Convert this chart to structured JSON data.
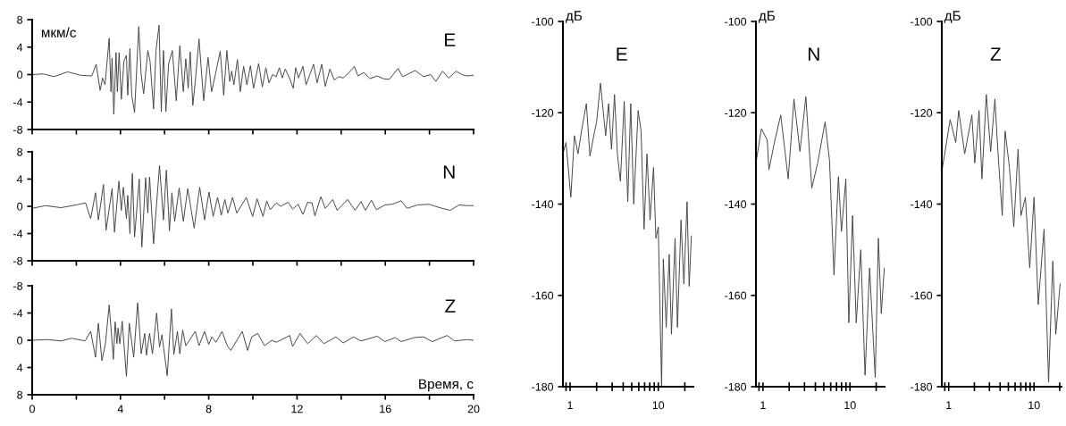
{
  "chart_data": [
    {
      "type": "line",
      "title": "E",
      "ylabel": "мкм/с",
      "xlim": [
        0,
        20
      ],
      "ylim": [
        -8,
        8
      ],
      "xticks": [
        0,
        {
          "value": 2,
          "label": null
        },
        4,
        {
          "value": 6,
          "label": null
        },
        8,
        {
          "value": 10,
          "label": null
        },
        12,
        {
          "value": 14,
          "label": null
        },
        16,
        {
          "value": 18,
          "label": null
        },
        20
      ],
      "yticks": [
        -8,
        -4,
        0,
        4,
        8
      ],
      "tick_labels": "y",
      "grid": false,
      "legend": false,
      "x": [
        0,
        0.5,
        1,
        1.6,
        2.2,
        2.7,
        2.9,
        3.08,
        3.19,
        3.3,
        3.49,
        3.57,
        3.62,
        3.7,
        3.8,
        3.86,
        3.94,
        4.04,
        4.16,
        4.27,
        4.33,
        4.43,
        4.51,
        4.64,
        4.83,
        4.94,
        5.05,
        5.24,
        5.34,
        5.5,
        5.61,
        5.75,
        5.85,
        5.95,
        6.06,
        6.18,
        6.35,
        6.53,
        6.69,
        6.85,
        6.96,
        7.07,
        7.16,
        7.28,
        7.39,
        7.56,
        7.77,
        7.97,
        8.13,
        8.3,
        8.52,
        8.68,
        8.82,
        8.95,
        9.04,
        9.14,
        9.3,
        9.43,
        9.58,
        9.73,
        9.89,
        10.03,
        10.26,
        10.43,
        10.59,
        10.73,
        10.89,
        11.06,
        11.2,
        11.33,
        11.47,
        11.67,
        11.83,
        11.94,
        12.07,
        12.27,
        12.41,
        12.58,
        12.75,
        12.91,
        13.12,
        13.28,
        13.49,
        13.69,
        13.89,
        14.09,
        14.36,
        14.6,
        14.76,
        15.03,
        15.3,
        15.64,
        15.91,
        16.18,
        16.58,
        16.78,
        16.99,
        17.35,
        17.73,
        18.06,
        18.29,
        18.6,
        18.87,
        19.21,
        19.48,
        19.7,
        20
      ],
      "series": [
        {
          "color": "#444444",
          "values": [
            0,
            0.1,
            -0.3,
            0.4,
            -0.1,
            -0.2,
            1.5,
            -2.3,
            -0.5,
            -1.5,
            5.3,
            -2.5,
            2.4,
            -5.8,
            3.2,
            -2.5,
            3.2,
            -3.6,
            2.0,
            2.8,
            -3,
            3.8,
            -3,
            -5.5,
            7.0,
            0,
            -2.8,
            3.5,
            2,
            -5,
            3.5,
            7.2,
            -5.4,
            3.5,
            -5.4,
            1.5,
            3.5,
            -3.8,
            4.2,
            -2.5,
            2.3,
            -2,
            3.3,
            -4.5,
            -1,
            5.2,
            -3.8,
            2.5,
            -2.5,
            0,
            3.4,
            -3,
            3.5,
            -1,
            0.5,
            -1.5,
            2.2,
            -2.5,
            1.2,
            -1.5,
            1.3,
            -2,
            1.6,
            -1.8,
            1.0,
            -1.2,
            0,
            -0.3,
            1.0,
            -0.5,
            0.8,
            -0.6,
            -2,
            1,
            -0.5,
            1.2,
            -1.5,
            0,
            1.5,
            -1.2,
            1.5,
            -1.7,
            0.8,
            -0.8,
            -0.3,
            -0.5,
            0.3,
            1.2,
            -0.2,
            0.3,
            -0.6,
            -0.2,
            -0.6,
            -0.7,
            0.9,
            -0.3,
            0,
            0.6,
            -0.3,
            0,
            -1,
            0.5,
            -0.5,
            0.5,
            0,
            -0.2,
            -0.1
          ]
        }
      ]
    },
    {
      "type": "line",
      "title": "N",
      "xlim": [
        0,
        20
      ],
      "ylim": [
        -8,
        8
      ],
      "xticks": [
        0,
        {
          "value": 2,
          "label": null
        },
        4,
        {
          "value": 6,
          "label": null
        },
        8,
        {
          "value": 10,
          "label": null
        },
        12,
        {
          "value": 14,
          "label": null
        },
        16,
        {
          "value": 18,
          "label": null
        },
        20
      ],
      "yticks": [
        -8,
        -4,
        0,
        4,
        8
      ],
      "tick_labels": "y",
      "grid": false,
      "legend": false,
      "x": [
        0,
        0.6,
        1.3,
        2,
        2.42,
        2.65,
        2.87,
        3.0,
        3.23,
        3.35,
        3.62,
        3.73,
        3.93,
        4.04,
        4.13,
        4.27,
        4.33,
        4.43,
        4.54,
        4.64,
        4.85,
        4.97,
        5.14,
        5.24,
        5.32,
        5.5,
        5.77,
        5.95,
        6.08,
        6.22,
        6.33,
        6.46,
        6.66,
        6.85,
        7.05,
        7.34,
        7.59,
        7.81,
        8.01,
        8.2,
        8.4,
        8.57,
        8.73,
        8.87,
        9.08,
        9.27,
        9.7,
        9.99,
        10.19,
        10.46,
        10.63,
        10.79,
        11.06,
        11.26,
        11.6,
        11.8,
        12.05,
        12.27,
        12.48,
        12.68,
        12.81,
        13.08,
        13.28,
        13.62,
        13.82,
        14.29,
        14.63,
        14.9,
        15.1,
        15.37,
        15.6,
        15.98,
        16.31,
        16.72,
        16.99,
        17.46,
        17.99,
        18.46,
        18.94,
        19.34,
        19.7,
        20
      ],
      "series": [
        {
          "color": "#444444",
          "values": [
            -0.3,
            0.1,
            -0.2,
            0.2,
            0.5,
            -1.8,
            2.0,
            -2,
            3.2,
            -3.5,
            2.6,
            -3.8,
            3.7,
            -0.6,
            2.8,
            -1.8,
            1.6,
            -4,
            4.8,
            -4.5,
            4,
            -6,
            4.2,
            -1,
            4.3,
            -5.5,
            6,
            -2,
            5.3,
            -3.6,
            2,
            -2.2,
            2.7,
            -2.2,
            2.6,
            -3.2,
            2.8,
            -2,
            2.1,
            -1.5,
            1.3,
            -1.3,
            1.0,
            -1.0,
            1.3,
            -1.0,
            1.3,
            -1.5,
            1.1,
            -1.5,
            0.8,
            -0.5,
            0.5,
            0,
            0.6,
            -0.4,
            0.3,
            -1.2,
            0.6,
            0.5,
            -1.4,
            1.4,
            -0.3,
            1.0,
            -0.6,
            1.0,
            -0.6,
            0.7,
            -0.6,
            0.9,
            -0.5,
            0.2,
            0.3,
            0.8,
            -0.3,
            0.2,
            0.3,
            -0.2,
            -0.6,
            0.2,
            0.1,
            0.1
          ]
        }
      ]
    },
    {
      "type": "line",
      "title": "Z",
      "xlabel": "Время, с",
      "xlim": [
        0,
        20
      ],
      "ylim": [
        8,
        -8
      ],
      "xticks": [
        0,
        {
          "value": 2,
          "label": null
        },
        4,
        {
          "value": 6,
          "label": null
        },
        8,
        {
          "value": 10,
          "label": null
        },
        12,
        {
          "value": 14,
          "label": null
        },
        16,
        {
          "value": 18,
          "label": null
        },
        20
      ],
      "yticks": [
        -8,
        -4,
        0,
        4,
        8
      ],
      "grid": false,
      "legend": false,
      "x": [
        0,
        0.7,
        1.3,
        1.8,
        2.4,
        2.65,
        2.87,
        3.0,
        3.16,
        3.32,
        3.49,
        3.68,
        3.76,
        3.84,
        3.89,
        3.97,
        4.08,
        4.27,
        4.4,
        4.6,
        4.78,
        4.94,
        5.1,
        5.18,
        5.32,
        5.45,
        5.64,
        5.77,
        5.88,
        6.12,
        6.31,
        6.42,
        6.58,
        6.69,
        6.82,
        6.96,
        7.39,
        7.56,
        7.81,
        8.0,
        8.14,
        8.33,
        8.6,
        8.84,
        9.0,
        9.52,
        9.76,
        9.95,
        10.22,
        10.53,
        10.86,
        11.06,
        11.67,
        11.8,
        12.14,
        12.48,
        12.88,
        13.22,
        13.76,
        14.09,
        14.56,
        14.9,
        15.64,
        15.98,
        16.45,
        16.72,
        17.32,
        17.73,
        18.13,
        18.8,
        19.14,
        19.7,
        20
      ],
      "series": [
        {
          "color": "#444444",
          "values": [
            0,
            -0.1,
            0.1,
            -0.3,
            0.1,
            -1.3,
            2.5,
            -2.5,
            3,
            0.5,
            -5.2,
            2.8,
            -2.7,
            0.5,
            -1.8,
            0.5,
            -2.8,
            5.3,
            -2.5,
            2.5,
            -5.5,
            2.0,
            -1,
            2.2,
            -1,
            2,
            -4,
            1,
            -0.8,
            5.2,
            -4.6,
            2.1,
            -1.3,
            2,
            -1.5,
            0.8,
            -1.3,
            0.8,
            -1.3,
            0.6,
            -0.5,
            0.3,
            -1.3,
            0.8,
            1.5,
            -1.3,
            1.5,
            -0.5,
            -1,
            0.8,
            0,
            0.3,
            -0.7,
            0.9,
            -1.0,
            0.5,
            -0.7,
            0.5,
            -0.5,
            0.4,
            -0.5,
            0.1,
            -0.6,
            0.2,
            -0.4,
            0.2,
            -0.4,
            -0.5,
            0.2,
            -0.7,
            0.1,
            -0.1,
            0
          ]
        }
      ]
    },
    {
      "type": "line",
      "title": "E",
      "ylabel": "дБ",
      "log": "x",
      "xlim": [
        0.83,
        25
      ],
      "ylim": [
        -180,
        -100
      ],
      "xticks": [
        {
          "value": 0.9,
          "label": null
        },
        1,
        {
          "value": 2,
          "label": null
        },
        {
          "value": 3,
          "label": null
        },
        {
          "value": 4,
          "label": null
        },
        {
          "value": 5,
          "label": null
        },
        {
          "value": 6,
          "label": null
        },
        {
          "value": 7,
          "label": null
        },
        {
          "value": 8,
          "label": null
        },
        {
          "value": 9,
          "label": null
        },
        10,
        {
          "value": 20,
          "label": null
        }
      ],
      "yticks": [
        -180,
        -160,
        -140,
        -120,
        -100
      ],
      "grid": false,
      "legend": false,
      "x": [
        0.83,
        0.9,
        1.02,
        1.12,
        1.23,
        1.36,
        1.53,
        1.68,
        1.9,
        2.0,
        2.21,
        2.53,
        2.73,
        2.95,
        3.19,
        3.44,
        3.72,
        4.11,
        4.51,
        4.87,
        5.27,
        5.91,
        6.38,
        6.9,
        7.45,
        8.07,
        8.83,
        9.4,
        10.0,
        10.9,
        11.4,
        12.3,
        13.3,
        14.1,
        15.5,
        16.5,
        18.1,
        19.5,
        21.2,
        22.4,
        23.7
      ],
      "series": [
        {
          "color": "#444444",
          "values": [
            -129,
            -126.5,
            -138.5,
            -125,
            -129,
            -123.5,
            -118,
            -129.5,
            -124,
            -122,
            -113.5,
            -125,
            -118,
            -128,
            -116,
            -129,
            -135,
            -117.5,
            -139.5,
            -118,
            -140,
            -119.5,
            -124,
            -145.5,
            -129,
            -143.5,
            -132,
            -147.5,
            -145,
            -180,
            -152,
            -167,
            -151,
            -168.5,
            -147.5,
            -167,
            -143.5,
            -157.5,
            -139.5,
            -158,
            -147
          ]
        }
      ]
    },
    {
      "type": "line",
      "title": "N",
      "ylabel": "дБ",
      "log": "x",
      "xlim": [
        0.83,
        25
      ],
      "ylim": [
        -180,
        -100
      ],
      "xticks": [
        {
          "value": 0.9,
          "label": null
        },
        1,
        {
          "value": 2,
          "label": null
        },
        {
          "value": 3,
          "label": null
        },
        {
          "value": 4,
          "label": null
        },
        {
          "value": 5,
          "label": null
        },
        {
          "value": 6,
          "label": null
        },
        {
          "value": 7,
          "label": null
        },
        {
          "value": 8,
          "label": null
        },
        {
          "value": 9,
          "label": null
        },
        10,
        {
          "value": 20,
          "label": null
        }
      ],
      "yticks": [
        -180,
        -160,
        -140,
        -120,
        -100
      ],
      "grid": false,
      "legend": false,
      "x": [
        0.83,
        0.96,
        1.12,
        1.17,
        1.37,
        1.6,
        1.95,
        2.27,
        2.66,
        3.11,
        3.64,
        4.25,
        5.18,
        5.82,
        6.55,
        7.36,
        7.98,
        8.96,
        9.7,
        10.7,
        11.8,
        13.3,
        14.9,
        16.8,
        19.5,
        21.2,
        22.9,
        24.8
      ],
      "series": [
        {
          "color": "#444444",
          "values": [
            -131,
            -123.5,
            -126,
            -132.5,
            -126,
            -120.5,
            -134.5,
            -117,
            -128.5,
            -116.5,
            -136.5,
            -131,
            -122,
            -130.5,
            -155.5,
            -134,
            -146,
            -134.5,
            -166,
            -142.5,
            -166,
            -150,
            -177.5,
            -154,
            -178,
            -147.5,
            -164,
            -154
          ]
        }
      ]
    },
    {
      "type": "line",
      "title": "Z",
      "ylabel": "дБ",
      "log": "x",
      "xlim": [
        0.83,
        21
      ],
      "ylim": [
        -180,
        -100
      ],
      "xticks": [
        {
          "value": 0.9,
          "label": null
        },
        1,
        {
          "value": 2,
          "label": null
        },
        {
          "value": 3,
          "label": null
        },
        {
          "value": 4,
          "label": null
        },
        {
          "value": 5,
          "label": null
        },
        {
          "value": 6,
          "label": null
        },
        {
          "value": 7,
          "label": null
        },
        {
          "value": 8,
          "label": null
        },
        {
          "value": 9,
          "label": null
        },
        10,
        {
          "value": 20,
          "label": null
        }
      ],
      "yticks": [
        -180,
        -160,
        -140,
        -120,
        -100
      ],
      "grid": false,
      "legend": false,
      "x": [
        0.83,
        1.04,
        1.21,
        1.31,
        1.54,
        1.87,
        2.02,
        2.27,
        2.45,
        2.76,
        3.1,
        3.48,
        3.76,
        4.24,
        4.58,
        5.15,
        5.79,
        6.5,
        7.04,
        7.92,
        8.9,
        10.0,
        11.2,
        13.1,
        14.8,
        16.6,
        18.0,
        20.2
      ],
      "series": [
        {
          "color": "#444444",
          "values": [
            -133,
            -121.5,
            -126.5,
            -119.5,
            -129,
            -120.5,
            -131,
            -119.5,
            -134.5,
            -116,
            -128.5,
            -117,
            -128,
            -142.5,
            -124,
            -132,
            -145,
            -128,
            -142.5,
            -138.5,
            -154,
            -138.5,
            -162,
            -145.5,
            -179,
            -152.5,
            -168.5,
            -157.5
          ]
        }
      ]
    }
  ]
}
